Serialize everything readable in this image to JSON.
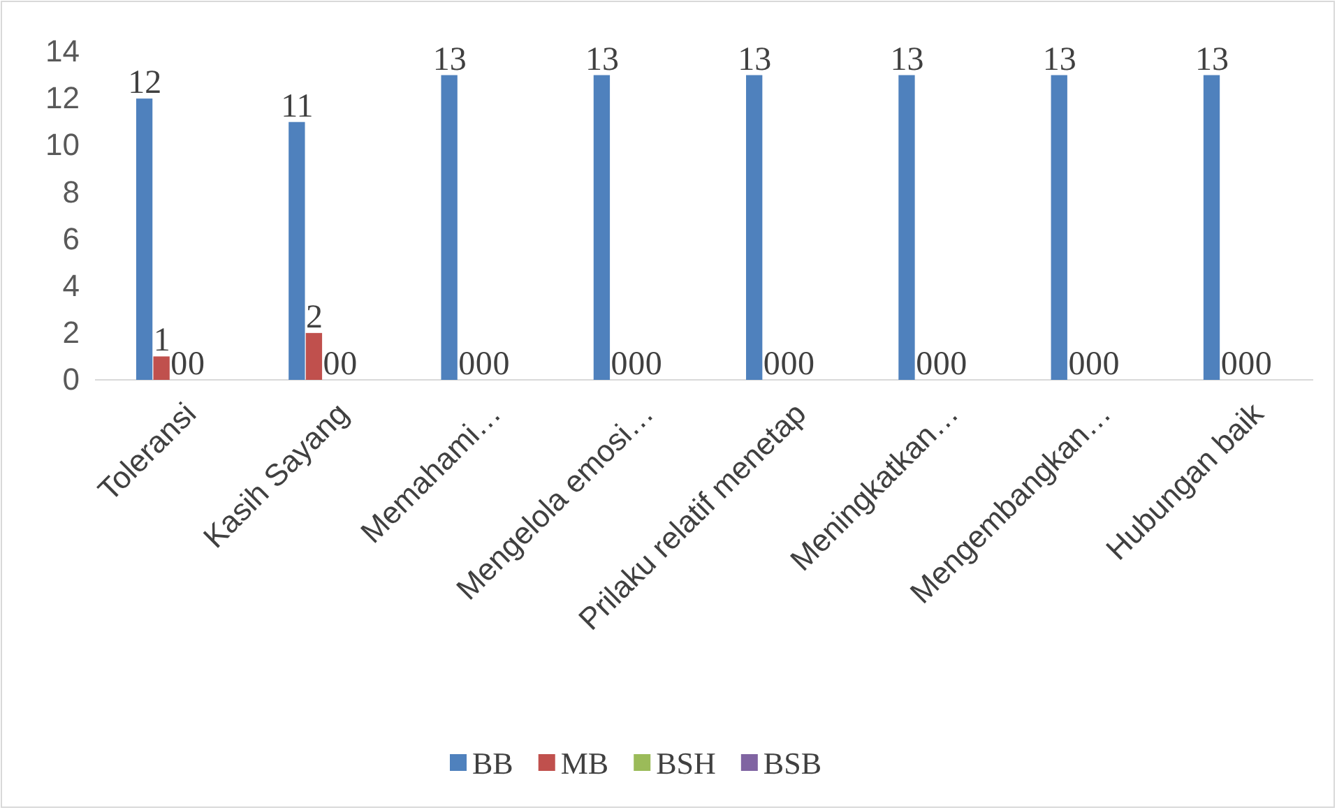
{
  "chart_data": {
    "type": "bar",
    "categories": [
      "Toleransi",
      "Kasih Sayang",
      "Memahami…",
      "Mengelola emosi…",
      "Prilaku relatif menetap",
      "Meningkatkan…",
      "Mengembangkan…",
      "Hubungan baik"
    ],
    "series": [
      {
        "name": "BB",
        "color": "#4f81bd",
        "values": [
          12,
          11,
          13,
          13,
          13,
          13,
          13,
          13
        ]
      },
      {
        "name": "MB",
        "color": "#c0504d",
        "values": [
          1,
          2,
          0,
          0,
          0,
          0,
          0,
          0
        ]
      },
      {
        "name": "BSH",
        "color": "#9bbb59",
        "values": [
          0,
          0,
          0,
          0,
          0,
          0,
          0,
          0
        ]
      },
      {
        "name": "BSB",
        "color": "#8064a2",
        "values": [
          0,
          0,
          0,
          0,
          0,
          0,
          0,
          0
        ]
      }
    ],
    "ylim": [
      0,
      14
    ],
    "yticks": [
      0,
      2,
      4,
      6,
      8,
      10,
      12,
      14
    ],
    "grid": false,
    "legend": "bottom",
    "data_labels": true
  }
}
